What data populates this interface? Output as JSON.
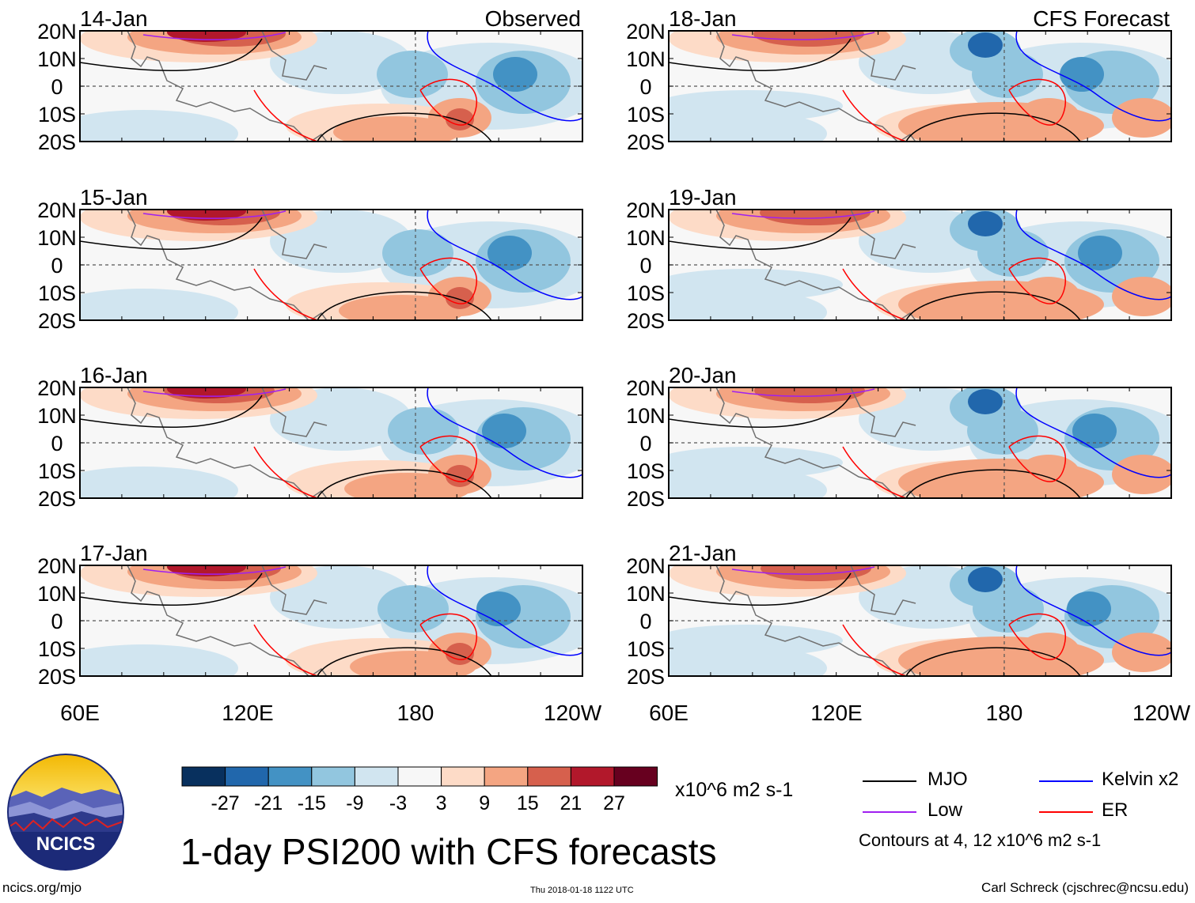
{
  "panels": [
    {
      "date": "14-Jan",
      "label": "Observed"
    },
    {
      "date": "15-Jan",
      "label": ""
    },
    {
      "date": "16-Jan",
      "label": ""
    },
    {
      "date": "17-Jan",
      "label": ""
    },
    {
      "date": "18-Jan",
      "label": "CFS Forecast"
    },
    {
      "date": "19-Jan",
      "label": ""
    },
    {
      "date": "20-Jan",
      "label": ""
    },
    {
      "date": "21-Jan",
      "label": ""
    }
  ],
  "lat_labels": [
    "20N",
    "10N",
    "0",
    "10S",
    "20S"
  ],
  "lon_labels": [
    "60E",
    "120E",
    "180",
    "120W"
  ],
  "colorbar": {
    "colors": [
      "#08305e",
      "#2167ac",
      "#4392c4",
      "#92c6df",
      "#d1e5f0",
      "#f7f7f7",
      "#fddbc7",
      "#f4a582",
      "#d6604d",
      "#b2182b",
      "#67001f"
    ],
    "tick_labels": [
      "-27",
      "-21",
      "-15",
      "-9",
      "-3",
      "3",
      "9",
      "15",
      "21",
      "27"
    ],
    "units": "x10^6 m2 s-1"
  },
  "legend": [
    {
      "name": "MJO",
      "color": "#000000"
    },
    {
      "name": "Kelvin x2",
      "color": "#0000ff"
    },
    {
      "name": "Low",
      "color": "#a020f0"
    },
    {
      "name": "ER",
      "color": "#ff0000"
    }
  ],
  "contours_note": "Contours at 4, 12 x10^6 m2 s-1",
  "title": "1-day PSI200 with CFS forecasts",
  "logo_text": "NCICS",
  "footer": {
    "url": "ncics.org/mjo",
    "timestamp": "Thu 2018-01-18 1122 UTC",
    "author": "Carl Schreck (cjschrec@ncsu.edu)"
  }
}
